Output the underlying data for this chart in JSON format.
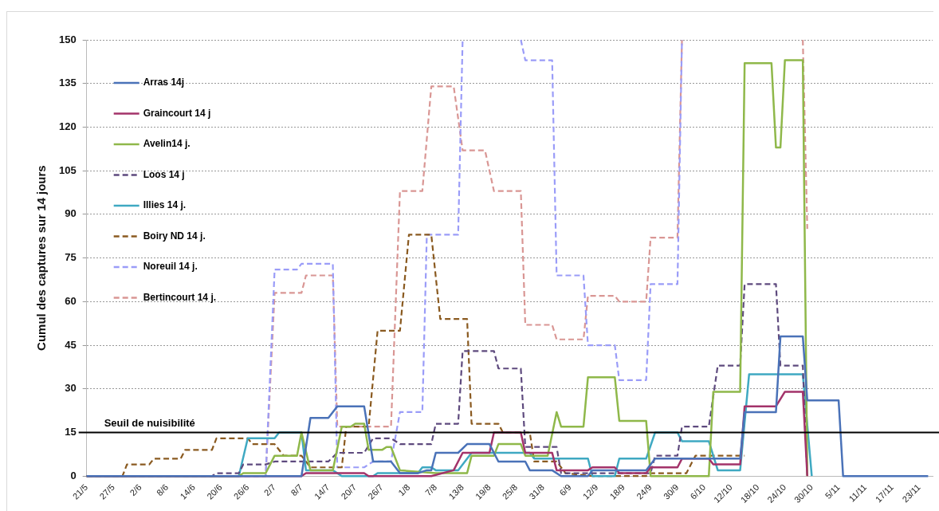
{
  "chart_data": {
    "type": "line",
    "ylabel": "Cumul des captures sur 14 jours",
    "xlim": [
      "--05-21",
      "--11-26"
    ],
    "xticks": [
      {
        "value": "--05-21",
        "label": "21/5"
      },
      {
        "value": "--05-27",
        "label": "27/5"
      },
      {
        "value": "--06-02",
        "label": "2/6"
      },
      {
        "value": "--06-08",
        "label": "8/6"
      },
      {
        "value": "--06-14",
        "label": "14/6"
      },
      {
        "value": "--06-20",
        "label": "20/6"
      },
      {
        "value": "--06-26",
        "label": "26/6"
      },
      {
        "value": "--07-02",
        "label": "2/7"
      },
      {
        "value": "--07-08",
        "label": "8/7"
      },
      {
        "value": "--07-14",
        "label": "14/7"
      },
      {
        "value": "--07-20",
        "label": "20/7"
      },
      {
        "value": "--07-26",
        "label": "26/7"
      },
      {
        "value": "--08-01",
        "label": "1/8"
      },
      {
        "value": "--08-07",
        "label": "7/8"
      },
      {
        "value": "--08-13",
        "label": "13/8"
      },
      {
        "value": "--08-19",
        "label": "19/8"
      },
      {
        "value": "--08-25",
        "label": "25/8"
      },
      {
        "value": "--08-31",
        "label": "31/8"
      },
      {
        "value": "--09-06",
        "label": "6/9"
      },
      {
        "value": "--09-12",
        "label": "12/9"
      },
      {
        "value": "--09-18",
        "label": "18/9"
      },
      {
        "value": "--09-24",
        "label": "24/9"
      },
      {
        "value": "--09-30",
        "label": "30/9"
      },
      {
        "value": "--10-06",
        "label": "6/10"
      },
      {
        "value": "--10-12",
        "label": "12/10"
      },
      {
        "value": "--10-18",
        "label": "18/10"
      },
      {
        "value": "--10-24",
        "label": "24/10"
      },
      {
        "value": "--10-30",
        "label": "30/10"
      },
      {
        "value": "--11-05",
        "label": "5/11"
      },
      {
        "value": "--11-11",
        "label": "11/11"
      },
      {
        "value": "--11-17",
        "label": "17/11"
      },
      {
        "value": "--11-23",
        "label": "23/11"
      }
    ],
    "ylim": [
      0,
      150
    ],
    "yticks": [
      0,
      15,
      30,
      45,
      60,
      75,
      90,
      105,
      120,
      135,
      150
    ],
    "grid": "y",
    "legend": "top left",
    "ref_lines": [
      {
        "axis": "y",
        "value": 15,
        "label": "Seuil de nuisibilité",
        "color": "#000000"
      }
    ],
    "series": [
      {
        "name": "Arras 14j",
        "color": "#4a72b8",
        "line_style": "solid",
        "x": [
          "--05-21",
          "--07-08",
          "--07-10",
          "--07-14",
          "--07-16",
          "--07-22",
          "--07-24",
          "--07-28",
          "--07-30",
          "--08-03",
          "--08-05",
          "--08-06",
          "--08-07",
          "--08-12",
          "--08-14",
          "--08-19",
          "--08-21",
          "--08-27",
          "--08-28",
          "--09-02",
          "--09-04",
          "--09-10",
          "--09-11",
          "--09-23",
          "--09-25",
          "--10-14",
          "--10-15",
          "--10-22",
          "--10-23",
          "--10-28",
          "--10-29",
          "--11-05",
          "--11-06",
          "--11-25"
        ],
        "values": [
          0,
          0,
          20,
          20,
          24,
          24,
          5,
          5,
          1,
          1,
          2,
          2,
          8,
          8,
          11,
          11,
          5,
          5,
          2,
          2,
          0,
          0,
          2,
          2,
          6,
          6,
          22,
          22,
          48,
          48,
          26,
          26,
          0,
          0
        ]
      },
      {
        "name": "Graincourt 14 j",
        "color": "#a3336a",
        "line_style": "solid",
        "x": [
          "--05-21",
          "--07-08",
          "--07-09",
          "--07-22",
          "--07-23",
          "--08-06",
          "--08-11",
          "--08-13",
          "--08-19",
          "--08-20",
          "--08-26",
          "--08-27",
          "--09-02",
          "--09-03",
          "--09-10",
          "--09-11",
          "--09-16",
          "--09-17",
          "--09-23",
          "--09-24",
          "--09-30",
          "--10-01",
          "--10-07",
          "--10-08",
          "--10-14",
          "--10-15",
          "--10-22",
          "--10-24",
          "--10-28",
          "--10-29"
        ],
        "values": [
          0,
          0,
          1,
          1,
          0,
          0,
          2,
          8,
          8,
          15,
          15,
          8,
          8,
          2,
          2,
          3,
          3,
          1,
          1,
          3,
          3,
          6,
          6,
          4,
          4,
          24,
          24,
          29,
          29,
          0
        ]
      },
      {
        "name": "Avelin14 j.",
        "color": "#8fb84a",
        "line_style": "solid",
        "x": [
          "--05-21",
          "--06-24",
          "--06-25",
          "--06-30",
          "--07-02",
          "--07-07",
          "--07-08",
          "--07-10",
          "--07-15",
          "--07-17",
          "--07-19",
          "--07-20",
          "--07-22",
          "--07-23",
          "--07-26",
          "--07-27",
          "--07-28",
          "--07-30",
          "--08-07",
          "--08-14",
          "--08-15",
          "--08-20",
          "--08-21",
          "--08-26",
          "--08-27",
          "--09-01",
          "--09-03",
          "--09-04",
          "--09-09",
          "--09-10",
          "--09-16",
          "--09-17",
          "--09-23",
          "--09-24",
          "--10-07",
          "--10-08",
          "--10-14",
          "--10-15",
          "--10-21",
          "--10-22",
          "--10-23",
          "--10-24",
          "--10-28",
          "--10-29"
        ],
        "values": [
          0,
          0,
          1,
          1,
          7,
          7,
          15,
          2,
          2,
          17,
          17,
          18,
          18,
          9,
          9,
          10,
          10,
          2,
          1,
          1,
          7,
          7,
          11,
          11,
          7,
          7,
          22,
          17,
          17,
          34,
          34,
          19,
          19,
          0,
          0,
          29,
          29,
          142,
          142,
          113,
          113,
          143,
          143,
          0
        ]
      },
      {
        "name": "Loos 14 j",
        "color": "#5e4a7e",
        "line_style": "dashed",
        "x": [
          "--05-21",
          "--06-18",
          "--06-19",
          "--06-24",
          "--06-25",
          "--06-30",
          "--07-02",
          "--07-14",
          "--07-16",
          "--07-22",
          "--07-24",
          "--07-28",
          "--07-30",
          "--08-06",
          "--08-07",
          "--08-12",
          "--08-13",
          "--08-20",
          "--08-21",
          "--08-26",
          "--08-27",
          "--09-03",
          "--09-04",
          "--09-24",
          "--09-25",
          "--09-30",
          "--10-01",
          "--10-07",
          "--10-09",
          "--10-14",
          "--10-15",
          "--10-22",
          "--10-23",
          "--10-28",
          "--10-29"
        ],
        "values": [
          0,
          0,
          1,
          1,
          4,
          4,
          5,
          5,
          8,
          8,
          13,
          13,
          11,
          11,
          18,
          18,
          43,
          43,
          37,
          37,
          10,
          10,
          1,
          1,
          7,
          7,
          17,
          17,
          38,
          38,
          66,
          66,
          38,
          38,
          0
        ]
      },
      {
        "name": "Illies 14 j.",
        "color": "#3fa9c2",
        "line_style": "solid",
        "x": [
          "--05-21",
          "--06-24",
          "--06-26",
          "--07-02",
          "--07-03",
          "--07-08",
          "--07-09",
          "--07-15",
          "--07-17",
          "--07-24",
          "--07-25",
          "--08-03",
          "--08-04",
          "--08-06",
          "--08-07",
          "--08-12",
          "--08-15",
          "--08-28",
          "--08-29",
          "--09-10",
          "--09-11",
          "--09-16",
          "--09-17",
          "--09-23",
          "--09-25",
          "--09-30",
          "--10-01",
          "--10-07",
          "--10-09",
          "--10-14",
          "--10-16",
          "--10-28",
          "--10-30"
        ],
        "values": [
          0,
          0,
          13,
          13,
          15,
          15,
          2,
          2,
          0,
          0,
          1,
          1,
          3,
          3,
          2,
          2,
          8,
          8,
          6,
          6,
          0,
          0,
          6,
          6,
          15,
          15,
          12,
          12,
          2,
          2,
          35,
          35,
          0
        ]
      },
      {
        "name": "Boiry ND 14 j.",
        "color": "#8a5a20",
        "line_style": "dashed",
        "x": [
          "--05-21",
          "--05-29",
          "--05-30",
          "--06-04",
          "--06-05",
          "--06-11",
          "--06-12",
          "--06-18",
          "--06-19",
          "--06-26",
          "--06-27",
          "--07-02",
          "--07-04",
          "--07-08",
          "--07-10",
          "--07-17",
          "--07-18",
          "--07-23",
          "--07-25",
          "--07-30",
          "--08-01",
          "--08-06",
          "--08-08",
          "--08-14",
          "--08-15",
          "--08-21",
          "--08-22",
          "--08-28",
          "--08-29",
          "--09-03",
          "--09-05",
          "--09-11",
          "--09-23",
          "--09-24",
          "--10-02",
          "--10-04",
          "--10-15"
        ],
        "values": [
          0,
          0,
          4,
          4,
          6,
          6,
          9,
          9,
          13,
          13,
          11,
          11,
          7,
          7,
          3,
          3,
          17,
          17,
          50,
          50,
          83,
          83,
          54,
          54,
          18,
          18,
          15,
          15,
          5,
          5,
          1,
          0,
          0,
          1,
          1,
          7,
          7
        ]
      },
      {
        "name": "Noreuil 14 j.",
        "color": "#9a9cf8",
        "line_style": "dashed",
        "x": [
          "--05-21",
          "--06-30",
          "--07-02",
          "--07-07",
          "--07-08",
          "--07-15",
          "--07-16",
          "--07-22",
          "--07-24",
          "--07-28",
          "--07-30",
          "--08-04",
          "--08-05",
          "--08-12",
          "--08-13",
          "--08-20",
          "--08-26",
          "--08-27",
          "--09-02",
          "--09-03",
          "--09-09",
          "--09-10",
          "--09-16",
          "--09-17",
          "--09-23",
          "--09-24",
          "--09-30",
          "--10-01"
        ],
        "values": [
          0,
          0,
          71,
          71,
          73,
          73,
          3,
          3,
          5,
          5,
          22,
          22,
          83,
          83,
          150,
          null,
          150,
          143,
          143,
          69,
          69,
          45,
          45,
          33,
          33,
          66,
          66,
          150
        ]
      },
      {
        "name": "Bertincourt 14 j.",
        "color": "#d99694",
        "line_style": "dashed",
        "x": [
          "--05-21",
          "--06-30",
          "--07-02",
          "--07-08",
          "--07-09",
          "--07-15",
          "--07-16",
          "--07-28",
          "--07-30",
          "--08-04",
          "--08-06",
          "--08-11",
          "--08-13",
          "--08-18",
          "--08-20",
          "--08-26",
          "--08-27",
          "--09-02",
          "--09-03",
          "--09-09",
          "--09-10",
          "--09-16",
          "--09-17",
          "--09-23",
          "--09-24",
          "--09-30",
          "--10-01",
          "--10-15",
          "--10-28",
          "--10-29"
        ],
        "values": [
          0,
          0,
          63,
          63,
          69,
          69,
          17,
          17,
          98,
          98,
          134,
          134,
          112,
          112,
          98,
          98,
          52,
          52,
          47,
          47,
          62,
          62,
          60,
          60,
          82,
          82,
          150,
          null,
          150,
          85
        ]
      }
    ]
  }
}
